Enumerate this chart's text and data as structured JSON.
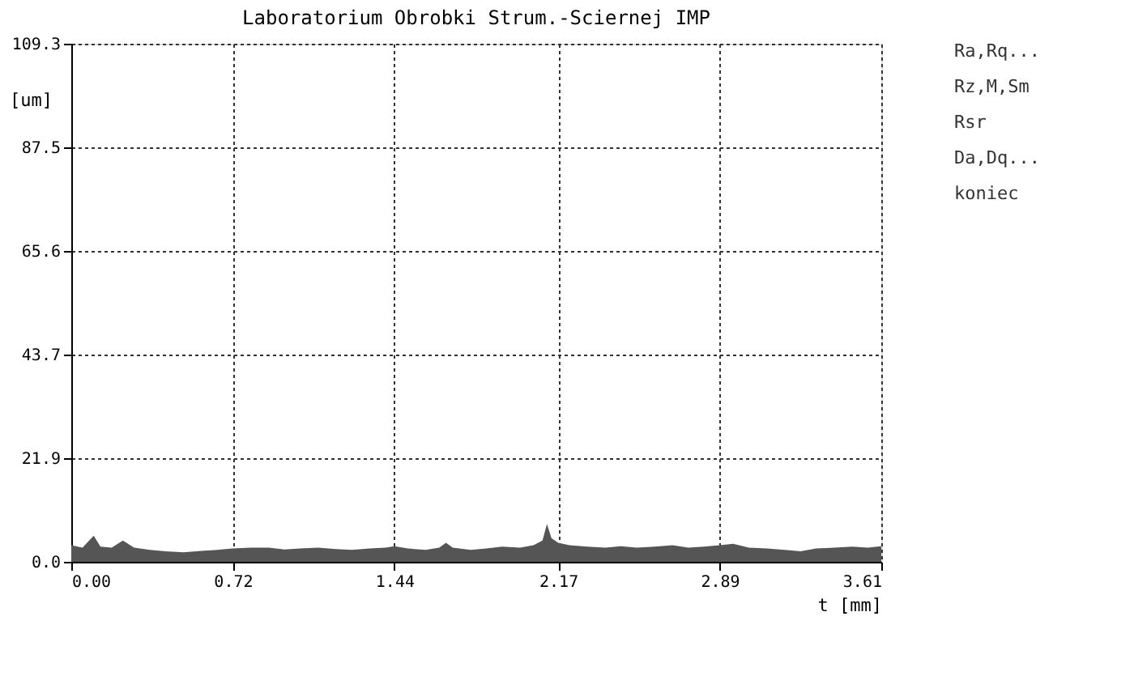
{
  "chart_data": {
    "type": "area",
    "title": "Laboratorium Obrobki Strum.-Sciernej IMP",
    "xlabel": "t [mm]",
    "ylabel": "[um]",
    "x": [
      0.0,
      0.05,
      0.1,
      0.13,
      0.18,
      0.23,
      0.28,
      0.35,
      0.42,
      0.5,
      0.58,
      0.65,
      0.72,
      0.8,
      0.88,
      0.95,
      1.02,
      1.1,
      1.18,
      1.25,
      1.33,
      1.4,
      1.44,
      1.5,
      1.58,
      1.64,
      1.67,
      1.7,
      1.78,
      1.85,
      1.92,
      2.0,
      2.06,
      2.1,
      2.12,
      2.14,
      2.17,
      2.22,
      2.3,
      2.38,
      2.45,
      2.52,
      2.6,
      2.68,
      2.75,
      2.82,
      2.89,
      2.95,
      3.02,
      3.1,
      3.18,
      3.25,
      3.32,
      3.4,
      3.48,
      3.55,
      3.61
    ],
    "series": [
      {
        "color": "#555555",
        "values": [
          3.5,
          3.0,
          5.5,
          3.2,
          3.0,
          4.5,
          3.0,
          2.5,
          2.2,
          2.0,
          2.3,
          2.5,
          2.8,
          3.0,
          3.0,
          2.6,
          2.8,
          3.0,
          2.7,
          2.5,
          2.8,
          3.0,
          3.3,
          2.8,
          2.5,
          3.0,
          4.0,
          3.0,
          2.5,
          2.8,
          3.2,
          3.0,
          3.5,
          4.5,
          8.0,
          5.0,
          4.0,
          3.5,
          3.2,
          3.0,
          3.3,
          3.0,
          3.2,
          3.5,
          3.0,
          3.2,
          3.5,
          3.8,
          3.0,
          2.8,
          2.5,
          2.2,
          2.8,
          3.0,
          3.2,
          3.0,
          3.3
        ]
      }
    ],
    "xlim": [
      0,
      3.61
    ],
    "xticks": [
      {
        "value": 0,
        "label": "0.00"
      },
      0.72,
      1.44,
      2.17,
      2.89,
      3.61
    ],
    "ylim": [
      0,
      109.3
    ],
    "yticks": [
      {
        "value": 0,
        "label": "0.0"
      },
      21.9,
      43.7,
      65.6,
      87.5,
      109.3
    ],
    "grid": true,
    "annotations": [
      "Ra,Rq...",
      "Rz,M,Sm",
      "Rsr",
      "Da,Dq...",
      "koniec"
    ]
  }
}
